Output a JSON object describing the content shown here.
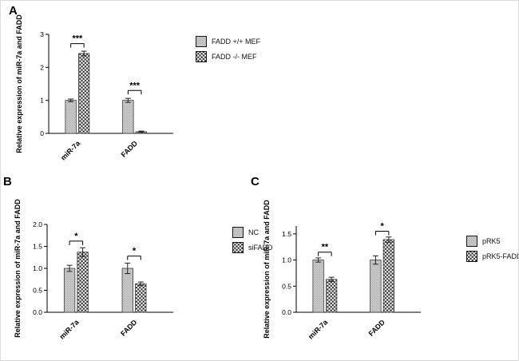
{
  "figure": {
    "background": "#ffffff",
    "border_color": "#dcdcdc",
    "axis_color": "#000000"
  },
  "chart_data": [
    {
      "type": "bar",
      "panel": "A",
      "title": "",
      "xlabel": "",
      "ylabel": "Relative expression of miR-7a and FADD",
      "categories": [
        "miR-7a",
        "FADD"
      ],
      "ylim": [
        0,
        3
      ],
      "yticks": [
        "0",
        "1",
        "2",
        "3"
      ],
      "grid": false,
      "legend_position": "right",
      "series": [
        {
          "name": "FADD +/+ MEF",
          "pattern": "stipple",
          "values": [
            1.0,
            1.0
          ],
          "errors": [
            0.04,
            0.06
          ]
        },
        {
          "name": "FADD -/- MEF",
          "pattern": "check",
          "values": [
            2.42,
            0.05
          ],
          "errors": [
            0.07,
            0.02
          ]
        }
      ],
      "significance": [
        {
          "category": "miR-7a",
          "label": "***",
          "y": 2.72
        },
        {
          "category": "FADD",
          "label": "***",
          "y": 1.3
        }
      ]
    },
    {
      "type": "bar",
      "panel": "B",
      "title": "",
      "xlabel": "",
      "ylabel": "Relative expression of miR-7a and FADD",
      "categories": [
        "miR-7a",
        "FADD"
      ],
      "ylim": [
        0,
        2.0
      ],
      "yticks": [
        "0.0",
        "0.5",
        "1.0",
        "1.5",
        "2.0"
      ],
      "grid": false,
      "legend_position": "right",
      "series": [
        {
          "name": "NC",
          "pattern": "stipple",
          "values": [
            1.0,
            1.0
          ],
          "errors": [
            0.07,
            0.12
          ]
        },
        {
          "name": "siFADD",
          "pattern": "check",
          "values": [
            1.37,
            0.65
          ],
          "errors": [
            0.1,
            0.04
          ]
        }
      ],
      "significance": [
        {
          "category": "miR-7a",
          "label": "*",
          "y": 1.62
        },
        {
          "category": "FADD",
          "label": "*",
          "y": 1.28
        }
      ]
    },
    {
      "type": "bar",
      "panel": "C",
      "title": "",
      "xlabel": "",
      "ylabel": "Relative expression of miR-7a and FADD",
      "categories": [
        "miR-7a",
        "FADD"
      ],
      "ylim": [
        0,
        1.65
      ],
      "yticks": [
        "0.0",
        "0.5",
        "1.0",
        "1.5"
      ],
      "grid": false,
      "legend_position": "right",
      "series": [
        {
          "name": "pRK5",
          "pattern": "stipple",
          "values": [
            1.0,
            1.0
          ],
          "errors": [
            0.04,
            0.08
          ]
        },
        {
          "name": "pRK5-FADD",
          "pattern": "check",
          "values": [
            0.63,
            1.39
          ],
          "errors": [
            0.04,
            0.05
          ]
        }
      ],
      "significance": [
        {
          "category": "miR-7a",
          "label": "**",
          "y": 1.15
        },
        {
          "category": "FADD",
          "label": "*",
          "y": 1.55
        }
      ]
    }
  ]
}
